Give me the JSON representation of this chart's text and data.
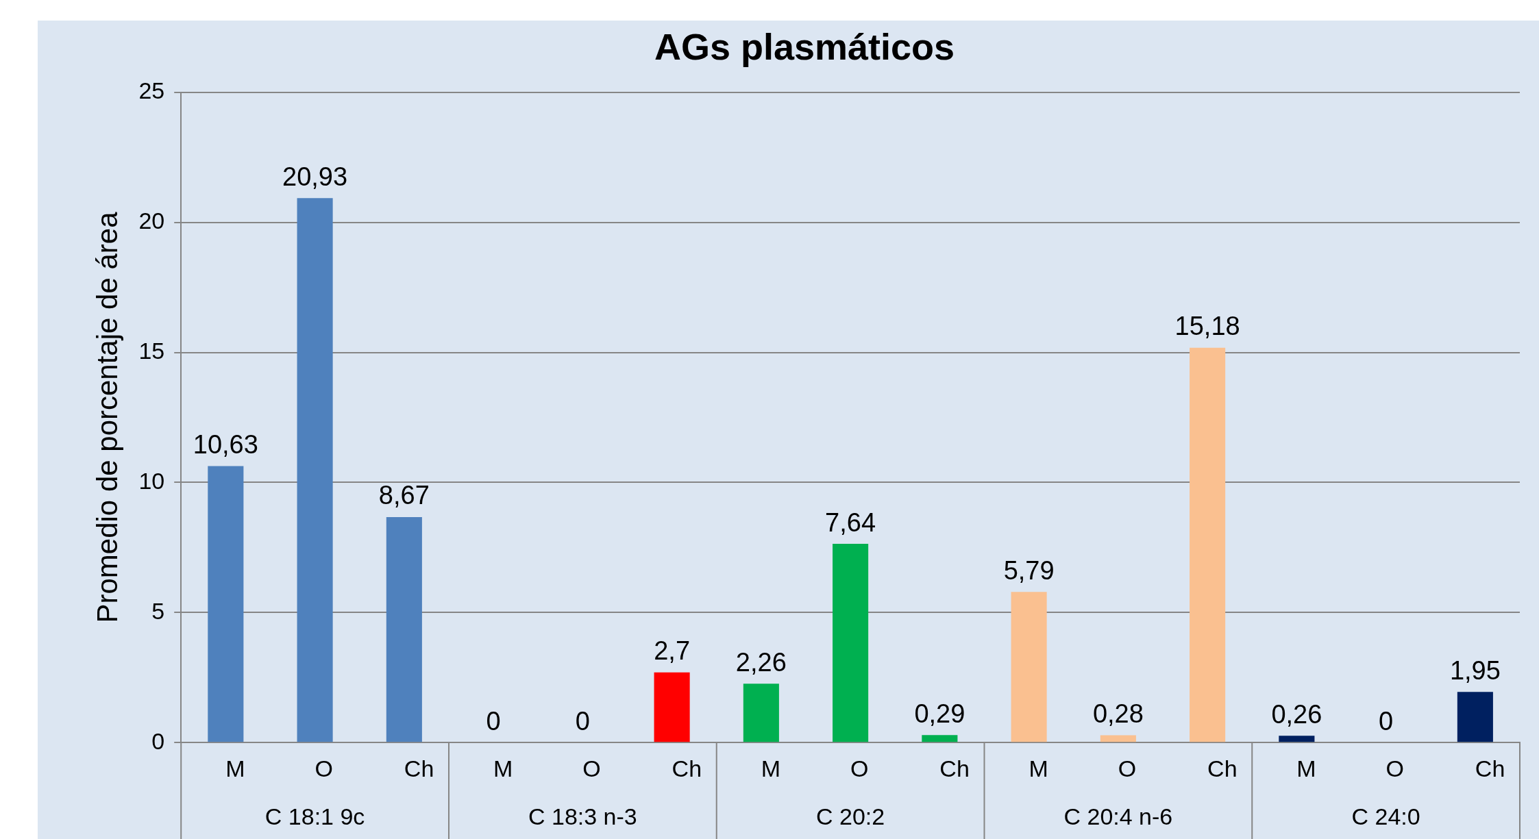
{
  "chart_data": {
    "type": "bar",
    "title": "AGs plasmáticos",
    "ylabel": "Promedio de porcentaje de área",
    "categories": [
      "M",
      "O",
      "Ch",
      "M",
      "O",
      "Ch",
      "M",
      "O",
      "Ch",
      "M",
      "O",
      "Ch",
      "M",
      "O",
      "Ch"
    ],
    "values": [
      10.63,
      20.93,
      8.67,
      0,
      0,
      2.7,
      2.26,
      7.64,
      0.29,
      5.79,
      0.28,
      15.18,
      0.26,
      0,
      1.95
    ],
    "value_labels": [
      "10,63",
      "20,93",
      "8,67",
      "0",
      "0",
      "2,7",
      "2,26",
      "7,64",
      "0,29",
      "5,79",
      "0,28",
      "15,18",
      "0,26",
      "0",
      "1,95"
    ],
    "colors": [
      "#4f81bd",
      "#4f81bd",
      "#4f81bd",
      "#ff0000",
      "#ff0000",
      "#ff0000",
      "#00b050",
      "#00b050",
      "#00b050",
      "#fac090",
      "#fac090",
      "#fac090",
      "#002060",
      "#002060",
      "#002060"
    ],
    "annotations": [
      "C 18:1 9c",
      "C 18:3 n-3",
      "C 20:2",
      "C 20:4 n-6",
      "C 24:0"
    ],
    "ylim": [
      0,
      25
    ],
    "yticks": [
      0,
      5,
      10,
      15,
      20,
      25
    ],
    "grid": "y"
  }
}
